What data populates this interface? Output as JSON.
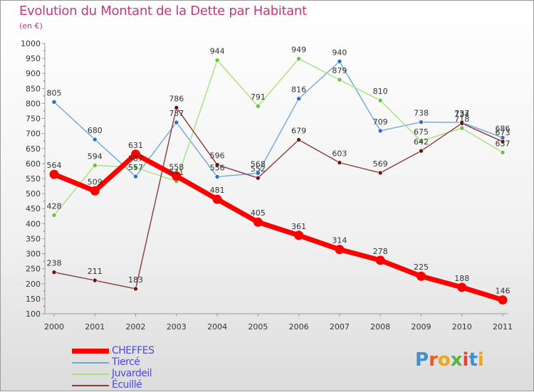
{
  "title": "Evolution du Montant de la Dette par Habitant",
  "subtitle": "(en €)",
  "logo": {
    "text": "Proxiti",
    "letter_colors": [
      "#3f8fd6",
      "#e85a2a",
      "#f2a31b",
      "#5bb144",
      "#e8432a",
      "#3f8fd6",
      "#f2a31b"
    ]
  },
  "chart_data": {
    "type": "line",
    "x": [
      "2000",
      "2001",
      "2002",
      "2003",
      "2004",
      "2005",
      "2006",
      "2007",
      "2008",
      "2009",
      "2010",
      "2011"
    ],
    "ylim": [
      100,
      1000
    ],
    "yticks": [
      100,
      150,
      200,
      250,
      300,
      350,
      400,
      450,
      500,
      550,
      600,
      650,
      700,
      750,
      800,
      850,
      900,
      950,
      1000
    ],
    "grid": false,
    "legend_position": "bottom-left",
    "series": [
      {
        "name": "CHEFFES",
        "color": "#ff0000",
        "marker_color": "#ff0000",
        "values": [
          564,
          509,
          631,
          558,
          481,
          405,
          361,
          314,
          278,
          225,
          188,
          146
        ],
        "labels": [
          "564",
          "509",
          "631",
          "558",
          "481",
          "405",
          "361",
          "314",
          "278",
          "225",
          "188",
          "146"
        ]
      },
      {
        "name": "Tiercé",
        "color": "#6fa8dc",
        "marker_color": "#2b6fc2",
        "values": [
          805,
          680,
          557,
          737,
          556,
          568,
          816,
          940,
          709,
          738,
          737,
          686
        ],
        "labels": [
          "805",
          "680",
          "557",
          "737",
          "556",
          "568",
          "816",
          "940",
          "709",
          "738",
          "737",
          "686"
        ]
      },
      {
        "name": "Juvardeil",
        "color": "#a6e27a",
        "marker_color": "#6cc04a",
        "values": [
          428,
          594,
          587,
          541,
          944,
          791,
          949,
          879,
          810,
          675,
          718,
          637
        ],
        "labels": [
          "428",
          "594",
          "587",
          "541",
          "944",
          "791",
          "949",
          "879",
          "810",
          "675",
          "718",
          "637"
        ]
      },
      {
        "name": "Écuillé",
        "color": "#8b3a3a",
        "marker_color": "#6b1414",
        "values": [
          238,
          211,
          183,
          786,
          596,
          552,
          679,
          603,
          569,
          642,
          734,
          673
        ],
        "labels": [
          "238",
          "211",
          "183",
          "786",
          "596",
          "552",
          "679",
          "603",
          "569",
          "642",
          "734",
          "673"
        ]
      }
    ]
  }
}
